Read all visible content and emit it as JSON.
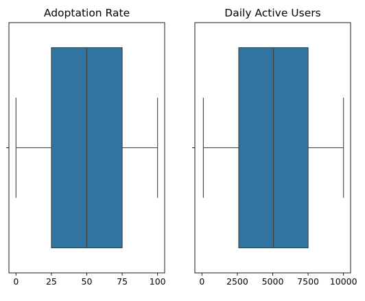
{
  "chart_data": [
    {
      "type": "box",
      "title": "Adoptation Rate",
      "xlabel": "",
      "ylabel": "",
      "xlim": [
        -5,
        105
      ],
      "xticks": [
        0,
        25,
        50,
        75,
        100
      ],
      "tick_labels": [
        "0",
        "25",
        "50",
        "75",
        "100"
      ],
      "stats": {
        "min": 0,
        "q1": 25,
        "median": 50,
        "q3": 75,
        "max": 100
      },
      "color": "#3274a1",
      "grid": false
    },
    {
      "type": "box",
      "title": "Daily Active Users",
      "xlabel": "",
      "ylabel": "",
      "xlim": [
        -500,
        10500
      ],
      "xticks": [
        0,
        2500,
        5000,
        7500,
        10000
      ],
      "tick_labels": [
        "0",
        "2500",
        "5000",
        "7500",
        "10000"
      ],
      "stats": {
        "min": 100,
        "q1": 2600,
        "median": 5050,
        "q3": 7500,
        "max": 10000
      },
      "color": "#3274a1",
      "grid": false
    }
  ]
}
